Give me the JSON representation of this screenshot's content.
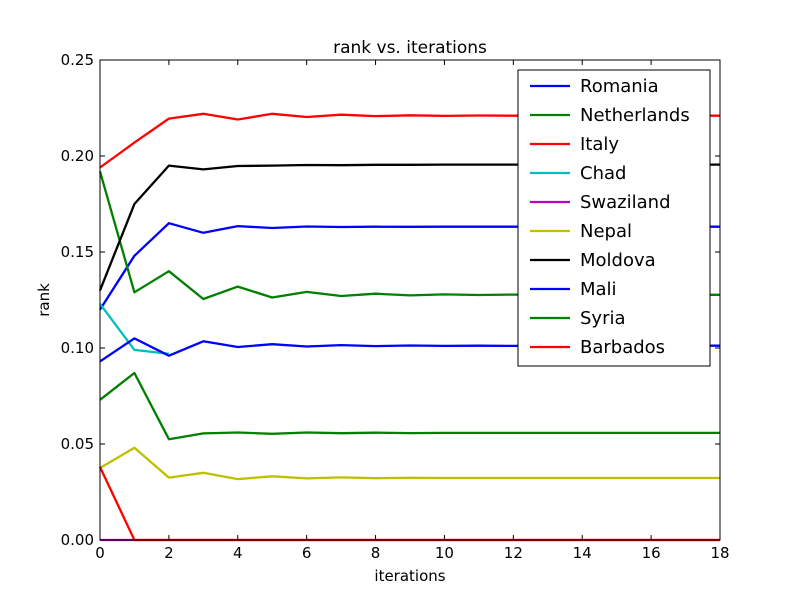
{
  "chart_data": {
    "type": "line",
    "title": "rank vs. iterations",
    "xlabel": "iterations",
    "ylabel": "rank",
    "xlim": [
      0,
      18
    ],
    "ylim": [
      0,
      0.25
    ],
    "grid": false,
    "legend_position": "top-right",
    "x": [
      0,
      1,
      2,
      3,
      4,
      5,
      6,
      7,
      8,
      9,
      10,
      11,
      12,
      13,
      14,
      15,
      16,
      17,
      18
    ],
    "x_ticks": [
      "0",
      "2",
      "4",
      "6",
      "8",
      "10",
      "12",
      "14",
      "16",
      "18"
    ],
    "y_ticks": [
      "0.00",
      "0.05",
      "0.10",
      "0.15",
      "0.20",
      "0.25"
    ],
    "series": [
      {
        "name": "Romania",
        "color": "#0000ff",
        "values": [
          0.12,
          0.148,
          0.165,
          0.16,
          0.1635,
          0.1625,
          0.1633,
          0.163,
          0.1632,
          0.1631,
          0.1632,
          0.1632,
          0.1632,
          0.1632,
          0.1632,
          0.1632,
          0.1632,
          0.1632,
          0.1632
        ]
      },
      {
        "name": "Netherlands",
        "color": "#008000",
        "values": [
          0.192,
          0.129,
          0.14,
          0.1255,
          0.132,
          0.1263,
          0.1292,
          0.1271,
          0.1283,
          0.1274,
          0.1279,
          0.1276,
          0.1278,
          0.1277,
          0.1277,
          0.1277,
          0.1277,
          0.1277,
          0.1277
        ]
      },
      {
        "name": "Italy",
        "color": "#ff0000",
        "values": [
          0.194,
          0.207,
          0.2195,
          0.222,
          0.219,
          0.222,
          0.2203,
          0.2215,
          0.2208,
          0.2212,
          0.2209,
          0.2211,
          0.221,
          0.221,
          0.221,
          0.221,
          0.221,
          0.221,
          0.221
        ]
      },
      {
        "name": "Chad",
        "color": "#00bfbf",
        "values": [
          0.123,
          0.099,
          0.097,
          null,
          null,
          null,
          null,
          null,
          null,
          null,
          null,
          null,
          null,
          null,
          null,
          null,
          null,
          null,
          null
        ]
      },
      {
        "name": "Swaziland",
        "color": "#bf00bf",
        "values": [
          0,
          0,
          0,
          0,
          0,
          0,
          0,
          0,
          0,
          0,
          0,
          0,
          0,
          0,
          0,
          0,
          0,
          0,
          0
        ]
      },
      {
        "name": "Nepal",
        "color": "#bfbf00",
        "values": [
          0.0375,
          0.048,
          0.0325,
          0.035,
          0.0317,
          0.0332,
          0.0321,
          0.0326,
          0.0322,
          0.0324,
          0.0323,
          0.0323,
          0.0323,
          0.0323,
          0.0323,
          0.0323,
          0.0323,
          0.0323,
          0.0323
        ]
      },
      {
        "name": "Moldova",
        "color": "#000000",
        "values": [
          0.13,
          0.175,
          0.195,
          0.193,
          0.1948,
          0.195,
          0.1953,
          0.1952,
          0.1954,
          0.1954,
          0.1955,
          0.1955,
          0.1955,
          0.1955,
          0.1955,
          0.1955,
          0.1955,
          0.1955,
          0.1955
        ]
      },
      {
        "name": "Mali",
        "color": "#0000ff",
        "values": [
          0.093,
          0.105,
          0.096,
          0.1035,
          0.1005,
          0.102,
          0.1008,
          0.1015,
          0.101,
          0.1013,
          0.1011,
          0.1012,
          0.1011,
          0.1012,
          0.1012,
          0.1012,
          0.1012,
          0.1012,
          0.1012
        ]
      },
      {
        "name": "Syria",
        "color": "#008000",
        "values": [
          0.073,
          0.087,
          0.0525,
          0.0555,
          0.056,
          0.0553,
          0.056,
          0.0556,
          0.0559,
          0.0557,
          0.0558,
          0.0558,
          0.0558,
          0.0558,
          0.0558,
          0.0558,
          0.0558,
          0.0558,
          0.0558
        ]
      },
      {
        "name": "Barbados",
        "color": "#ff0000",
        "values": [
          0.038,
          0,
          0,
          0,
          0,
          0,
          0,
          0,
          0,
          0,
          0,
          0,
          0,
          0,
          0,
          0,
          0,
          0,
          0
        ]
      }
    ]
  }
}
